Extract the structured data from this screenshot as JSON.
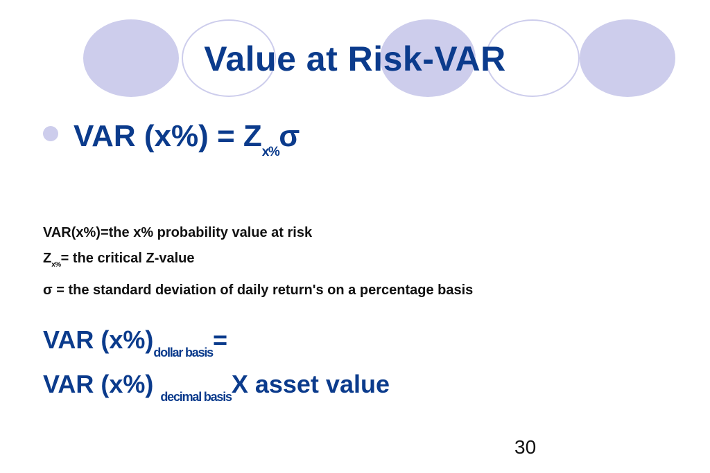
{
  "slide": {
    "title": "Value at Risk-VAR",
    "bullet": {
      "main": "VAR (x%) = Z",
      "subscript": "x%",
      "suffix": "σ"
    },
    "definitions": [
      {
        "prefix": "VAR(x%)=the x% probability value at risk"
      },
      {
        "prefix": "Z",
        "subscript": "x%",
        "suffix": "= the critical Z-value"
      },
      {
        "prefix": "σ = the standard deviation of daily return's on a percentage basis"
      }
    ],
    "formula": {
      "line1_main": "VAR (x%)",
      "line1_sub": "dollar basis",
      "line1_tail": "=",
      "line2_main": "VAR (x%) ",
      "line2_sub": "decimal basis",
      "line2_tail": "X asset value"
    },
    "page_number": "30",
    "colors": {
      "title": "#0b3b8c",
      "circle": "#cdcdec",
      "body_text": "#111111"
    }
  }
}
